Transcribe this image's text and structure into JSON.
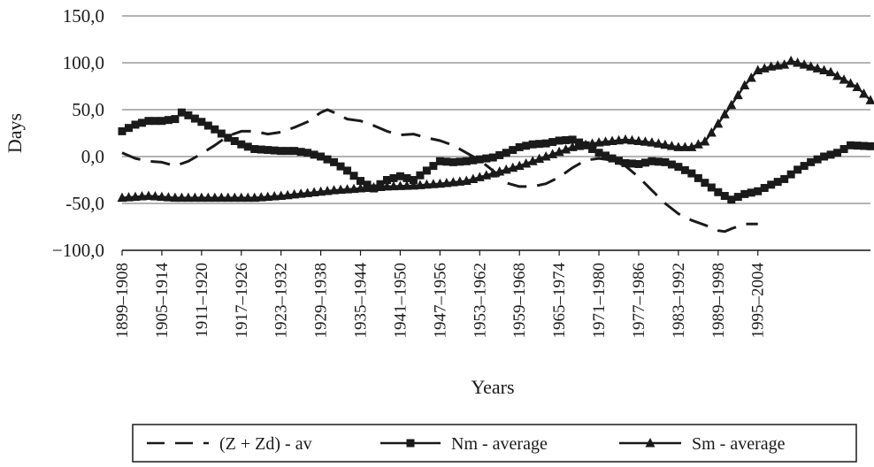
{
  "chart_data": {
    "type": "line",
    "ylabel": "Days",
    "xlabel": "Years",
    "ylim": [
      -100,
      150
    ],
    "yticks": [
      {
        "value": 150,
        "label": "150,0"
      },
      {
        "value": 100,
        "label": "100,0"
      },
      {
        "value": 50,
        "label": "50,0"
      },
      {
        "value": 0,
        "label": "0,0"
      },
      {
        "value": -50,
        "label": "-50,0"
      },
      {
        "value": -100,
        "label": "−100,0"
      }
    ],
    "grid": "horizontal",
    "legend": "bottom",
    "x_start": 1899,
    "x_end": 2012,
    "x_tick_labels": [
      {
        "value": 1899,
        "label": "1899–1908"
      },
      {
        "value": 1905,
        "label": "1905–1914"
      },
      {
        "value": 1911,
        "label": "1911–1920"
      },
      {
        "value": 1917,
        "label": "1917–1926"
      },
      {
        "value": 1923,
        "label": "1923–1932"
      },
      {
        "value": 1929,
        "label": "1929–1938"
      },
      {
        "value": 1935,
        "label": "1935–1944"
      },
      {
        "value": 1941,
        "label": "1941–1950"
      },
      {
        "value": 1947,
        "label": "1947–1956"
      },
      {
        "value": 1953,
        "label": "1953–1962"
      },
      {
        "value": 1959,
        "label": "1959–1968"
      },
      {
        "value": 1965,
        "label": "1965–1974"
      },
      {
        "value": 1971,
        "label": "1971–1980"
      },
      {
        "value": 1977,
        "label": "1977–1986"
      },
      {
        "value": 1983,
        "label": "1983–1992"
      },
      {
        "value": 1989,
        "label": "1989–1998"
      },
      {
        "value": 1995,
        "label": "1995–2004"
      }
    ],
    "series": [
      {
        "name": "(Z + Zd)  - av",
        "style": "dashed",
        "color": "#1a1a1a",
        "points": [
          [
            1899,
            4
          ],
          [
            1901,
            -2
          ],
          [
            1903,
            -5
          ],
          [
            1905,
            -6
          ],
          [
            1907,
            -10
          ],
          [
            1909,
            -5
          ],
          [
            1911,
            3
          ],
          [
            1913,
            12
          ],
          [
            1915,
            22
          ],
          [
            1917,
            27
          ],
          [
            1919,
            27
          ],
          [
            1921,
            24
          ],
          [
            1923,
            26
          ],
          [
            1925,
            31
          ],
          [
            1927,
            37
          ],
          [
            1929,
            47
          ],
          [
            1930,
            50
          ],
          [
            1931,
            47
          ],
          [
            1933,
            40
          ],
          [
            1935,
            38
          ],
          [
            1937,
            33
          ],
          [
            1939,
            27
          ],
          [
            1941,
            23
          ],
          [
            1943,
            24
          ],
          [
            1945,
            20
          ],
          [
            1947,
            17
          ],
          [
            1949,
            12
          ],
          [
            1951,
            4
          ],
          [
            1953,
            -4
          ],
          [
            1955,
            -15
          ],
          [
            1957,
            -28
          ],
          [
            1959,
            -32
          ],
          [
            1961,
            -32
          ],
          [
            1963,
            -29
          ],
          [
            1965,
            -22
          ],
          [
            1967,
            -12
          ],
          [
            1969,
            -4
          ],
          [
            1971,
            -2
          ],
          [
            1973,
            -4
          ],
          [
            1975,
            -10
          ],
          [
            1977,
            -22
          ],
          [
            1979,
            -36
          ],
          [
            1981,
            -50
          ],
          [
            1983,
            -61
          ],
          [
            1985,
            -68
          ],
          [
            1987,
            -73
          ],
          [
            1989,
            -79
          ],
          [
            1990,
            -80
          ],
          [
            1991,
            -77
          ],
          [
            1993,
            -72
          ],
          [
            1995,
            -72
          ]
        ]
      },
      {
        "name": "Nm - average",
        "style": "solid-square",
        "color": "#1a1a1a",
        "points": [
          [
            1899,
            27
          ],
          [
            1901,
            34
          ],
          [
            1903,
            38
          ],
          [
            1905,
            38
          ],
          [
            1907,
            40
          ],
          [
            1908,
            47
          ],
          [
            1909,
            44
          ],
          [
            1911,
            37
          ],
          [
            1913,
            29
          ],
          [
            1915,
            20
          ],
          [
            1917,
            13
          ],
          [
            1919,
            8
          ],
          [
            1921,
            7
          ],
          [
            1923,
            6
          ],
          [
            1925,
            6
          ],
          [
            1927,
            4
          ],
          [
            1929,
            0
          ],
          [
            1931,
            -6
          ],
          [
            1933,
            -15
          ],
          [
            1935,
            -26
          ],
          [
            1937,
            -34
          ],
          [
            1939,
            -25
          ],
          [
            1941,
            -21
          ],
          [
            1943,
            -25
          ],
          [
            1945,
            -15
          ],
          [
            1947,
            -5
          ],
          [
            1949,
            -6
          ],
          [
            1951,
            -5
          ],
          [
            1953,
            -3
          ],
          [
            1955,
            -1
          ],
          [
            1957,
            4
          ],
          [
            1959,
            10
          ],
          [
            1961,
            13
          ],
          [
            1963,
            14
          ],
          [
            1965,
            17
          ],
          [
            1967,
            18
          ],
          [
            1969,
            12
          ],
          [
            1971,
            4
          ],
          [
            1973,
            -2
          ],
          [
            1975,
            -7
          ],
          [
            1977,
            -8
          ],
          [
            1979,
            -5
          ],
          [
            1981,
            -6
          ],
          [
            1983,
            -11
          ],
          [
            1985,
            -18
          ],
          [
            1987,
            -28
          ],
          [
            1989,
            -38
          ],
          [
            1991,
            -46
          ],
          [
            1993,
            -40
          ],
          [
            1995,
            -37
          ],
          [
            1997,
            -30
          ],
          [
            1999,
            -24
          ],
          [
            2001,
            -14
          ],
          [
            2003,
            -6
          ],
          [
            2005,
            0
          ],
          [
            2007,
            4
          ],
          [
            2009,
            12
          ],
          [
            2012,
            11
          ]
        ]
      },
      {
        "name": "Sm - average",
        "style": "solid-triangle",
        "color": "#1a1a1a",
        "points": [
          [
            1899,
            -44
          ],
          [
            1903,
            -42
          ],
          [
            1907,
            -44
          ],
          [
            1911,
            -44
          ],
          [
            1915,
            -44
          ],
          [
            1919,
            -44
          ],
          [
            1923,
            -42
          ],
          [
            1927,
            -39
          ],
          [
            1931,
            -36
          ],
          [
            1935,
            -34
          ],
          [
            1939,
            -32
          ],
          [
            1943,
            -31
          ],
          [
            1947,
            -29
          ],
          [
            1951,
            -26
          ],
          [
            1955,
            -18
          ],
          [
            1959,
            -10
          ],
          [
            1963,
            0
          ],
          [
            1967,
            10
          ],
          [
            1971,
            15
          ],
          [
            1975,
            18
          ],
          [
            1979,
            15
          ],
          [
            1983,
            10
          ],
          [
            1985,
            10
          ],
          [
            1987,
            16
          ],
          [
            1989,
            35
          ],
          [
            1991,
            55
          ],
          [
            1993,
            76
          ],
          [
            1995,
            92
          ],
          [
            1997,
            96
          ],
          [
            1999,
            98
          ],
          [
            2000,
            102
          ],
          [
            2002,
            98
          ],
          [
            2004,
            94
          ],
          [
            2006,
            90
          ],
          [
            2008,
            82
          ],
          [
            2010,
            74
          ],
          [
            2012,
            60
          ]
        ]
      }
    ]
  }
}
